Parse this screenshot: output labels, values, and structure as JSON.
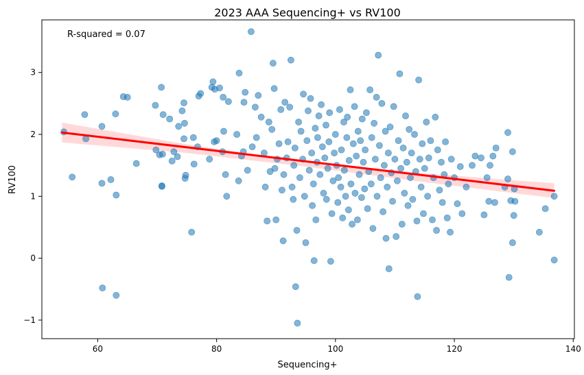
{
  "chart_data": {
    "type": "scatter",
    "title": "2023 AAA Sequencing+ vs RV100",
    "xlabel": "Sequencing+",
    "ylabel": "RV100",
    "annotation": "R-squared = 0.07",
    "xlim": [
      50.6,
      140.2
    ],
    "ylim": [
      -1.3,
      3.85
    ],
    "xticks": [
      60,
      80,
      100,
      120,
      140
    ],
    "yticks": [
      -1,
      0,
      1,
      2,
      3
    ],
    "ytick_labels": [
      "−1",
      "0",
      "1",
      "2",
      "3"
    ],
    "grid": false,
    "colors": {
      "points": "#1f77b4",
      "fit_line": "#ff0000",
      "ci_band": "#ff0000"
    },
    "regression": {
      "x": [
        54,
        136.8
      ],
      "y": [
        2.03,
        1.09
      ]
    },
    "confidence_band": {
      "x": [
        54,
        75,
        95,
        115,
        136.8
      ],
      "upper": [
        2.19,
        1.84,
        1.56,
        1.37,
        1.21
      ],
      "lower": [
        1.87,
        1.7,
        1.48,
        1.23,
        0.97
      ]
    },
    "points": [
      [
        54.3,
        2.04
      ],
      [
        55.7,
        1.31
      ],
      [
        57.8,
        2.32
      ],
      [
        58.0,
        1.93
      ],
      [
        60.7,
        2.13
      ],
      [
        60.7,
        1.21
      ],
      [
        60.8,
        -0.48
      ],
      [
        62.2,
        1.27
      ],
      [
        63.0,
        2.33
      ],
      [
        63.1,
        1.02
      ],
      [
        63.1,
        -0.6
      ],
      [
        64.3,
        2.61
      ],
      [
        65.0,
        2.6
      ],
      [
        66.5,
        1.53
      ],
      [
        69.7,
        2.47
      ],
      [
        69.8,
        1.75
      ],
      [
        70.4,
        1.67
      ],
      [
        70.7,
        2.76
      ],
      [
        70.8,
        1.17
      ],
      [
        70.8,
        1.16
      ],
      [
        70.9,
        1.68
      ],
      [
        71.0,
        2.32
      ],
      [
        72.1,
        2.25
      ],
      [
        72.5,
        1.57
      ],
      [
        72.8,
        1.72
      ],
      [
        73.4,
        1.64
      ],
      [
        73.6,
        2.13
      ],
      [
        74.2,
        2.38
      ],
      [
        74.5,
        2.51
      ],
      [
        74.5,
        1.93
      ],
      [
        74.6,
        2.18
      ],
      [
        74.7,
        1.29
      ],
      [
        74.8,
        1.34
      ],
      [
        75.8,
        0.42
      ],
      [
        76.1,
        1.95
      ],
      [
        76.2,
        1.52
      ],
      [
        76.8,
        1.8
      ],
      [
        77.0,
        2.62
      ],
      [
        77.3,
        2.66
      ],
      [
        78.8,
        1.6
      ],
      [
        79.2,
        2.76
      ],
      [
        79.4,
        2.85
      ],
      [
        79.6,
        1.88
      ],
      [
        79.7,
        2.73
      ],
      [
        80.0,
        1.9
      ],
      [
        80.5,
        2.75
      ],
      [
        81.0,
        1.72
      ],
      [
        81.1,
        2.6
      ],
      [
        81.2,
        2.05
      ],
      [
        81.5,
        1.35
      ],
      [
        81.7,
        1.0
      ],
      [
        82.0,
        2.53
      ],
      [
        83.4,
        2.0
      ],
      [
        83.7,
        1.25
      ],
      [
        83.8,
        2.99
      ],
      [
        84.2,
        1.65
      ],
      [
        84.5,
        1.72
      ],
      [
        84.6,
        2.52
      ],
      [
        84.8,
        2.68
      ],
      [
        85.2,
        1.42
      ],
      [
        85.8,
        3.66
      ],
      [
        86.0,
        1.8
      ],
      [
        86.5,
        2.44
      ],
      [
        86.7,
        1.95
      ],
      [
        87.0,
        2.63
      ],
      [
        87.5,
        2.28
      ],
      [
        88.0,
        1.7
      ],
      [
        88.2,
        1.15
      ],
      [
        88.5,
        0.6
      ],
      [
        88.8,
        2.2
      ],
      [
        89.0,
        1.4
      ],
      [
        89.3,
        2.08
      ],
      [
        89.5,
        3.15
      ],
      [
        89.7,
        2.74
      ],
      [
        89.8,
        1.45
      ],
      [
        90.0,
        0.62
      ],
      [
        90.2,
        1.6
      ],
      [
        90.5,
        1.85
      ],
      [
        90.8,
        2.4
      ],
      [
        91.0,
        1.1
      ],
      [
        91.2,
        0.28
      ],
      [
        91.3,
        1.35
      ],
      [
        91.5,
        2.52
      ],
      [
        91.8,
        1.62
      ],
      [
        92.0,
        1.88
      ],
      [
        92.3,
        2.44
      ],
      [
        92.5,
        3.2
      ],
      [
        92.7,
        1.15
      ],
      [
        92.9,
        0.95
      ],
      [
        93.0,
        1.5
      ],
      [
        93.2,
        1.78
      ],
      [
        93.3,
        -0.46
      ],
      [
        93.5,
        0.45
      ],
      [
        93.6,
        -1.05
      ],
      [
        93.8,
        2.2
      ],
      [
        94.0,
        1.3
      ],
      [
        94.2,
        2.05
      ],
      [
        94.5,
        1.6
      ],
      [
        94.6,
        2.65
      ],
      [
        94.8,
        1.0
      ],
      [
        95.0,
        0.25
      ],
      [
        95.2,
        1.9
      ],
      [
        95.4,
        2.38
      ],
      [
        95.6,
        1.42
      ],
      [
        95.8,
        2.58
      ],
      [
        96.0,
        1.7
      ],
      [
        96.1,
        0.85
      ],
      [
        96.3,
        1.2
      ],
      [
        96.4,
        -0.04
      ],
      [
        96.6,
        2.1
      ],
      [
        96.7,
        0.62
      ],
      [
        96.9,
        1.55
      ],
      [
        97.0,
        1.95
      ],
      [
        97.2,
        2.3
      ],
      [
        97.4,
        1.35
      ],
      [
        97.6,
        2.48
      ],
      [
        97.8,
        1.8
      ],
      [
        98.0,
        1.05
      ],
      [
        98.2,
        1.62
      ],
      [
        98.4,
        2.15
      ],
      [
        98.5,
        0.95
      ],
      [
        98.7,
        1.45
      ],
      [
        98.9,
        1.88
      ],
      [
        99.0,
        2.35
      ],
      [
        99.2,
        -0.05
      ],
      [
        99.4,
        0.72
      ],
      [
        99.6,
        1.25
      ],
      [
        99.8,
        1.7
      ],
      [
        100.0,
        2.0
      ],
      [
        100.2,
        1.5
      ],
      [
        100.4,
        0.9
      ],
      [
        100.5,
        1.3
      ],
      [
        100.7,
        2.4
      ],
      [
        100.9,
        1.15
      ],
      [
        101.0,
        1.75
      ],
      [
        101.2,
        0.65
      ],
      [
        101.4,
        2.2
      ],
      [
        101.5,
        1.42
      ],
      [
        101.7,
        1.0
      ],
      [
        101.9,
        1.95
      ],
      [
        102.0,
        2.28
      ],
      [
        102.2,
        0.78
      ],
      [
        102.3,
        1.58
      ],
      [
        102.5,
        2.72
      ],
      [
        102.6,
        1.2
      ],
      [
        102.8,
        0.55
      ],
      [
        103.0,
        1.85
      ],
      [
        103.2,
        2.45
      ],
      [
        103.3,
        1.05
      ],
      [
        103.5,
        1.65
      ],
      [
        103.7,
        0.62
      ],
      [
        103.8,
        2.05
      ],
      [
        104.0,
        1.35
      ],
      [
        104.2,
        1.9
      ],
      [
        104.4,
        0.98
      ],
      [
        104.5,
        2.25
      ],
      [
        104.7,
        1.55
      ],
      [
        104.9,
        1.12
      ],
      [
        105.0,
        1.75
      ],
      [
        105.2,
        2.35
      ],
      [
        105.4,
        0.8
      ],
      [
        105.6,
        1.4
      ],
      [
        105.8,
        2.72
      ],
      [
        106.0,
        1.2
      ],
      [
        106.1,
        1.95
      ],
      [
        106.3,
        0.48
      ],
      [
        106.5,
        2.18
      ],
      [
        106.7,
        1.6
      ],
      [
        106.9,
        2.6
      ],
      [
        107.0,
        1.0
      ],
      [
        107.2,
        3.28
      ],
      [
        107.4,
        1.82
      ],
      [
        107.6,
        1.3
      ],
      [
        107.8,
        2.5
      ],
      [
        108.0,
        0.75
      ],
      [
        108.2,
        1.5
      ],
      [
        108.4,
        2.05
      ],
      [
        108.5,
        0.32
      ],
      [
        108.7,
        1.15
      ],
      [
        108.9,
        1.7
      ],
      [
        109.0,
        -0.17
      ],
      [
        109.2,
        2.12
      ],
      [
        109.4,
        1.38
      ],
      [
        109.6,
        0.92
      ],
      [
        109.8,
        2.45
      ],
      [
        110.0,
        1.6
      ],
      [
        110.2,
        0.35
      ],
      [
        110.4,
        1.25
      ],
      [
        110.6,
        1.9
      ],
      [
        110.8,
        2.98
      ],
      [
        111.0,
        1.45
      ],
      [
        111.2,
        0.55
      ],
      [
        111.4,
        1.78
      ],
      [
        111.6,
        1.05
      ],
      [
        111.8,
        2.3
      ],
      [
        112.0,
        1.55
      ],
      [
        112.2,
        0.85
      ],
      [
        112.4,
        2.08
      ],
      [
        112.6,
        1.3
      ],
      [
        112.8,
        1.7
      ],
      [
        113.0,
        0.95
      ],
      [
        113.3,
        2.0
      ],
      [
        113.5,
        1.4
      ],
      [
        113.7,
        0.6
      ],
      [
        113.8,
        -0.62
      ],
      [
        114.0,
        2.88
      ],
      [
        114.2,
        1.6
      ],
      [
        114.4,
        1.15
      ],
      [
        114.6,
        1.85
      ],
      [
        114.8,
        0.72
      ],
      [
        115.0,
        1.45
      ],
      [
        115.3,
        2.2
      ],
      [
        115.5,
        1.0
      ],
      [
        115.7,
        1.62
      ],
      [
        116.0,
        1.9
      ],
      [
        116.3,
        0.62
      ],
      [
        116.5,
        1.3
      ],
      [
        116.8,
        2.28
      ],
      [
        117.0,
        0.45
      ],
      [
        117.2,
        1.75
      ],
      [
        117.5,
        1.1
      ],
      [
        117.8,
        1.55
      ],
      [
        118.0,
        0.9
      ],
      [
        118.3,
        1.35
      ],
      [
        118.5,
        1.88
      ],
      [
        118.8,
        0.65
      ],
      [
        119.0,
        1.2
      ],
      [
        119.3,
        0.42
      ],
      [
        119.5,
        1.6
      ],
      [
        120.0,
        1.3
      ],
      [
        120.5,
        0.88
      ],
      [
        121.0,
        1.48
      ],
      [
        121.3,
        0.72
      ],
      [
        122.0,
        1.15
      ],
      [
        123.0,
        1.5
      ],
      [
        123.5,
        1.65
      ],
      [
        124.5,
        1.62
      ],
      [
        125.0,
        0.7
      ],
      [
        125.5,
        1.3
      ],
      [
        125.8,
        0.92
      ],
      [
        126.0,
        1.5
      ],
      [
        126.5,
        1.65
      ],
      [
        126.8,
        0.9
      ],
      [
        127.0,
        1.78
      ],
      [
        128.5,
        1.15
      ],
      [
        129.0,
        1.28
      ],
      [
        129.0,
        2.03
      ],
      [
        129.2,
        -0.31
      ],
      [
        129.5,
        0.93
      ],
      [
        129.8,
        1.72
      ],
      [
        129.8,
        0.25
      ],
      [
        130.0,
        0.69
      ],
      [
        130.1,
        1.12
      ],
      [
        130.2,
        0.92
      ],
      [
        134.3,
        0.42
      ],
      [
        135.3,
        0.8
      ],
      [
        136.8,
        1.0
      ],
      [
        136.8,
        -0.03
      ]
    ]
  }
}
